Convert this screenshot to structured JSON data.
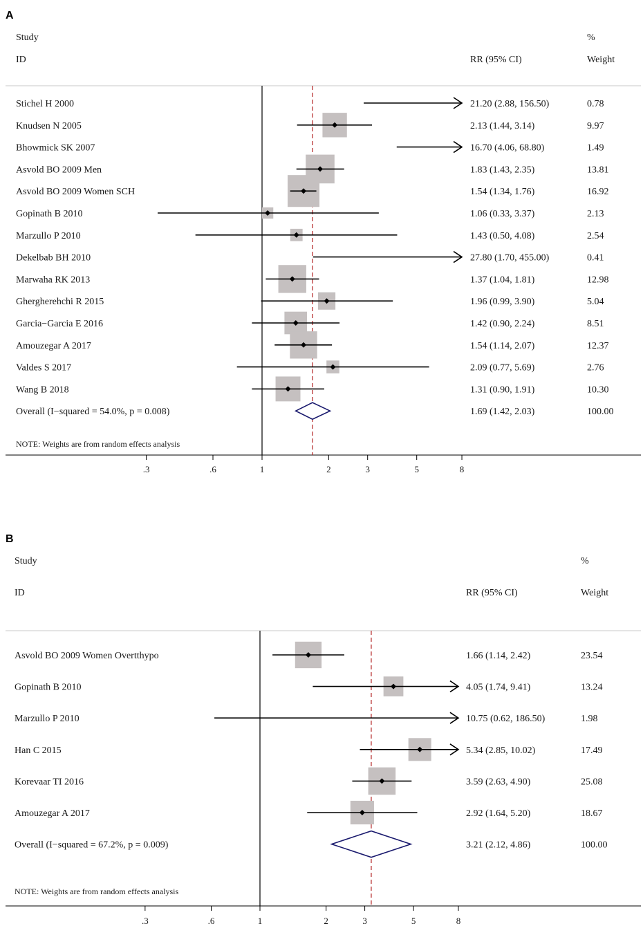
{
  "chart_data": [
    {
      "type": "forest",
      "panel": "A",
      "headers": {
        "study": "Study",
        "id": "ID",
        "ci": "RR (95% CI)",
        "pct": "%",
        "weight": "Weight"
      },
      "xscale": "log",
      "xticks": [
        0.3,
        0.6,
        1,
        2,
        3,
        5,
        8
      ],
      "xtick_labels": [
        ".3",
        ".6",
        "1",
        "2",
        "3",
        "5",
        "8"
      ],
      "reference_line": 1,
      "studies": [
        {
          "label": "Stichel H 2000",
          "rr": 21.2,
          "lo": 2.88,
          "hi": 156.5,
          "ci_text": "21.20 (2.88, 156.50)",
          "weight": "0.78"
        },
        {
          "label": "Knudsen N 2005",
          "rr": 2.13,
          "lo": 1.44,
          "hi": 3.14,
          "ci_text": "2.13 (1.44, 3.14)",
          "weight": "9.97"
        },
        {
          "label": "Bhowmick SK 2007",
          "rr": 16.7,
          "lo": 4.06,
          "hi": 68.8,
          "ci_text": "16.70 (4.06, 68.80)",
          "weight": "1.49"
        },
        {
          "label": "Asvold BO 2009 Men",
          "rr": 1.83,
          "lo": 1.43,
          "hi": 2.35,
          "ci_text": "1.83 (1.43, 2.35)",
          "weight": "13.81"
        },
        {
          "label": "Asvold BO 2009 Women  SCH",
          "rr": 1.54,
          "lo": 1.34,
          "hi": 1.76,
          "ci_text": "1.54 (1.34, 1.76)",
          "weight": "16.92"
        },
        {
          "label": "Gopinath B 2010",
          "rr": 1.06,
          "lo": 0.33,
          "hi": 3.37,
          "ci_text": "1.06 (0.33, 3.37)",
          "weight": "2.13"
        },
        {
          "label": "Marzullo P 2010",
          "rr": 1.43,
          "lo": 0.5,
          "hi": 4.08,
          "ci_text": "1.43 (0.50, 4.08)",
          "weight": "2.54"
        },
        {
          "label": "Dekelbab BH 2010",
          "rr": 27.8,
          "lo": 1.7,
          "hi": 455.0,
          "ci_text": "27.80 (1.70, 455.00)",
          "weight": "0.41"
        },
        {
          "label": "Marwaha RK 2013",
          "rr": 1.37,
          "lo": 1.04,
          "hi": 1.81,
          "ci_text": "1.37 (1.04, 1.81)",
          "weight": "12.98"
        },
        {
          "label": "Ghergherehchi R 2015",
          "rr": 1.96,
          "lo": 0.99,
          "hi": 3.9,
          "ci_text": "1.96 (0.99, 3.90)",
          "weight": "5.04"
        },
        {
          "label": "Garcia−Garcia E 2016",
          "rr": 1.42,
          "lo": 0.9,
          "hi": 2.24,
          "ci_text": "1.42 (0.90, 2.24)",
          "weight": "8.51"
        },
        {
          "label": "Amouzegar A 2017",
          "rr": 1.54,
          "lo": 1.14,
          "hi": 2.07,
          "ci_text": "1.54 (1.14, 2.07)",
          "weight": "12.37"
        },
        {
          "label": "Valdes S 2017",
          "rr": 2.09,
          "lo": 0.77,
          "hi": 5.69,
          "ci_text": "2.09 (0.77, 5.69)",
          "weight": "2.76"
        },
        {
          "label": "Wang B 2018",
          "rr": 1.31,
          "lo": 0.9,
          "hi": 1.91,
          "ci_text": "1.31 (0.90, 1.91)",
          "weight": "10.30"
        }
      ],
      "overall": {
        "label": "Overall  (I−squared = 54.0%, p = 0.008)",
        "rr": 1.69,
        "lo": 1.42,
        "hi": 2.03,
        "ci_text": "1.69 (1.42, 2.03)",
        "weight": "100.00"
      },
      "note": "NOTE: Weights are from random effects analysis"
    },
    {
      "type": "forest",
      "panel": "B",
      "headers": {
        "study": "Study",
        "id": "ID",
        "ci": "RR (95% CI)",
        "pct": "%",
        "weight": "Weight"
      },
      "xscale": "log",
      "xticks": [
        0.3,
        0.6,
        1,
        2,
        3,
        5,
        8
      ],
      "xtick_labels": [
        ".3",
        ".6",
        "1",
        "2",
        "3",
        "5",
        "8"
      ],
      "reference_line": 1,
      "studies": [
        {
          "label": "Asvold BO 2009 Women  Overtthypo",
          "rr": 1.66,
          "lo": 1.14,
          "hi": 2.42,
          "ci_text": "1.66 (1.14, 2.42)",
          "weight": "23.54"
        },
        {
          "label": "Gopinath B 2010",
          "rr": 4.05,
          "lo": 1.74,
          "hi": 9.41,
          "ci_text": "4.05 (1.74, 9.41)",
          "weight": "13.24"
        },
        {
          "label": "Marzullo P 2010",
          "rr": 10.75,
          "lo": 0.62,
          "hi": 186.5,
          "ci_text": "10.75 (0.62, 186.50)",
          "weight": "1.98"
        },
        {
          "label": "Han C 2015",
          "rr": 5.34,
          "lo": 2.85,
          "hi": 10.02,
          "ci_text": "5.34 (2.85, 10.02)",
          "weight": "17.49"
        },
        {
          "label": "Korevaar TI 2016",
          "rr": 3.59,
          "lo": 2.63,
          "hi": 4.9,
          "ci_text": "3.59 (2.63, 4.90)",
          "weight": "25.08"
        },
        {
          "label": "Amouzegar A 2017",
          "rr": 2.92,
          "lo": 1.64,
          "hi": 5.2,
          "ci_text": "2.92 (1.64, 5.20)",
          "weight": "18.67"
        }
      ],
      "overall": {
        "label": "Overall  (I−squared = 67.2%, p = 0.009)",
        "rr": 3.21,
        "lo": 2.12,
        "hi": 4.86,
        "ci_text": "3.21 (2.12, 4.86)",
        "weight": "100.00"
      },
      "note": "NOTE: Weights are from random effects analysis"
    }
  ],
  "colors": {
    "box": "#c5c0c0",
    "line": "#000000",
    "diamond": "#1a1a6e",
    "overall_line": "#b22222",
    "rule": "#c8c8c8"
  }
}
